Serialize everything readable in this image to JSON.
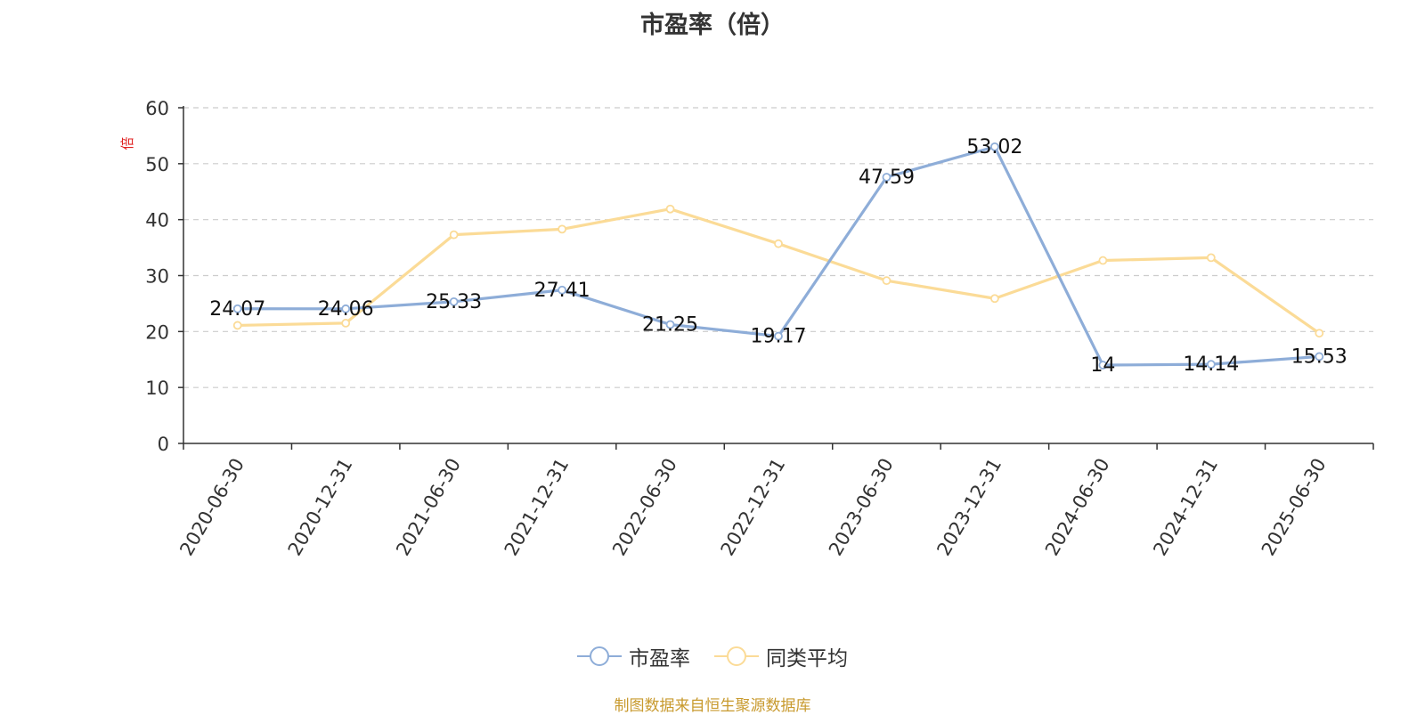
{
  "title": "市盈率（倍）",
  "footer": "制图数据来自恒生聚源数据库",
  "chart_data": {
    "type": "line",
    "title": "市盈率（倍）",
    "ylabel": "倍",
    "xlabel": "",
    "ylim": [
      0,
      60
    ],
    "yticks": [
      0,
      10,
      20,
      30,
      40,
      50,
      60
    ],
    "grid": true,
    "legend_position": "bottom-center",
    "categories": [
      "2020-06-30",
      "2020-12-31",
      "2021-06-30",
      "2021-12-31",
      "2022-06-30",
      "2022-12-31",
      "2023-06-30",
      "2023-12-31",
      "2024-06-30",
      "2024-12-31",
      "2025-06-30"
    ],
    "series": [
      {
        "name": "市盈率",
        "color": "#8eadd8",
        "values": [
          24.07,
          24.06,
          25.33,
          27.41,
          21.25,
          19.17,
          47.59,
          53.02,
          14,
          14.14,
          15.53
        ],
        "labels": [
          "24.07",
          "24.06",
          "25.33",
          "27.41",
          "21.25",
          "19.17",
          "47.59",
          "53.02",
          "14",
          "14.14",
          "15.53"
        ]
      },
      {
        "name": "同类平均",
        "color": "#fbdb97",
        "values": [
          21.1,
          21.5,
          37.3,
          38.3,
          41.9,
          35.7,
          29.1,
          25.9,
          32.7,
          33.2,
          19.7
        ]
      }
    ]
  }
}
